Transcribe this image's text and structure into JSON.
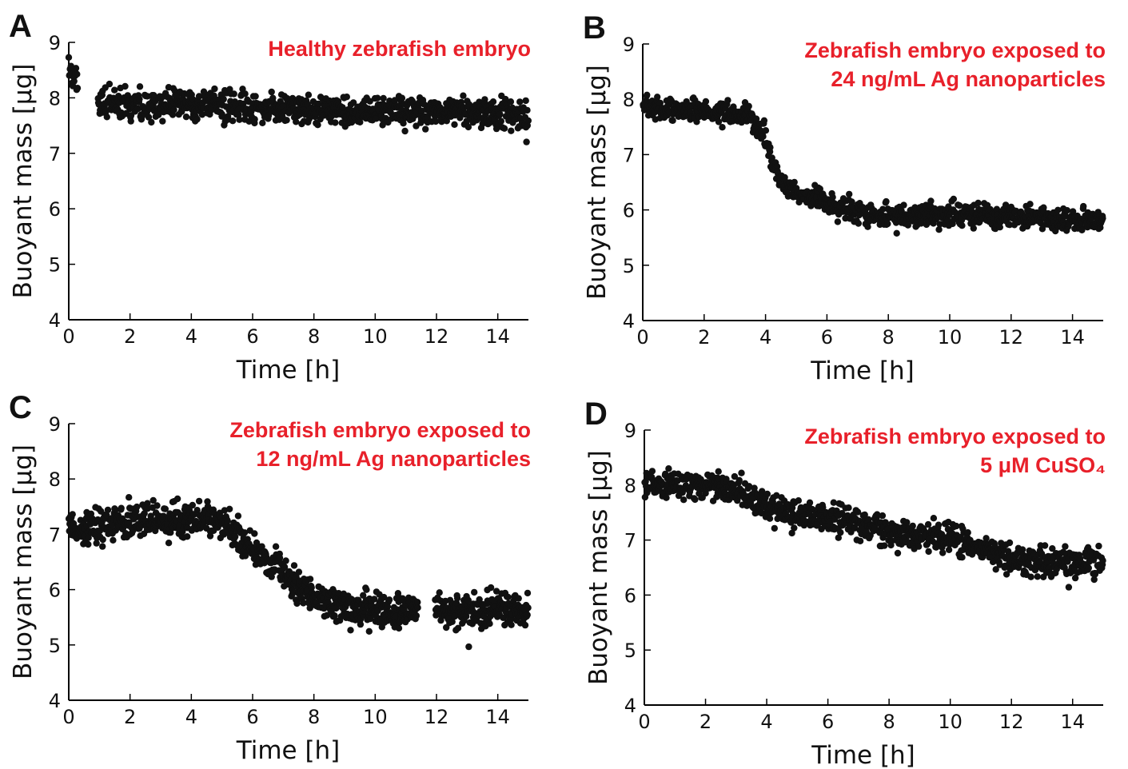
{
  "figure": {
    "annotation_color": "#e8202a",
    "marker_color": "#111111"
  },
  "chart_data": [
    {
      "panel": "A",
      "type": "scatter",
      "annotation": [
        "Healthy zebrafish embryo"
      ],
      "xlabel": "Time [h]",
      "ylabel": "Buoyant mass [μg]",
      "xlim": [
        0,
        15
      ],
      "ylim": [
        4,
        9
      ],
      "xticks": [
        0,
        2,
        4,
        6,
        8,
        10,
        12,
        14
      ],
      "yticks": [
        4,
        5,
        6,
        7,
        8,
        9
      ],
      "grid": false,
      "series": [
        {
          "trend": [
            [
              0.0,
              8.45
            ],
            [
              0.25,
              8.3
            ],
            [
              1.0,
              7.92
            ],
            [
              2.0,
              7.9
            ],
            [
              4.0,
              7.88
            ],
            [
              6.0,
              7.8
            ],
            [
              8.0,
              7.78
            ],
            [
              10.0,
              7.75
            ],
            [
              12.0,
              7.75
            ],
            [
              14.0,
              7.72
            ],
            [
              15.0,
              7.68
            ]
          ],
          "gaps": [
            [
              0.3,
              0.95
            ]
          ],
          "spread": 0.13,
          "n_points": 900
        }
      ]
    },
    {
      "panel": "B",
      "type": "scatter",
      "annotation": [
        "Zebrafish embryo exposed to",
        "24 ng/mL Ag nanoparticles"
      ],
      "xlabel": "Time [h]",
      "ylabel": "Buoyant mass [μg]",
      "xlim": [
        0,
        15
      ],
      "ylim": [
        4,
        9
      ],
      "xticks": [
        0,
        2,
        4,
        6,
        8,
        10,
        12,
        14
      ],
      "yticks": [
        4,
        5,
        6,
        7,
        8,
        9
      ],
      "grid": false,
      "series": [
        {
          "trend": [
            [
              0.0,
              7.85
            ],
            [
              2.0,
              7.78
            ],
            [
              3.5,
              7.7
            ],
            [
              3.9,
              7.4
            ],
            [
              4.2,
              6.9
            ],
            [
              4.6,
              6.45
            ],
            [
              5.0,
              6.3
            ],
            [
              6.0,
              6.1
            ],
            [
              7.0,
              5.95
            ],
            [
              8.0,
              5.9
            ],
            [
              10.0,
              5.92
            ],
            [
              12.0,
              5.88
            ],
            [
              14.0,
              5.8
            ],
            [
              15.0,
              5.82
            ]
          ],
          "gaps": [],
          "spread": 0.1,
          "n_points": 900
        }
      ]
    },
    {
      "panel": "C",
      "type": "scatter",
      "annotation": [
        "Zebrafish embryo exposed to",
        "12 ng/mL Ag nanoparticles"
      ],
      "xlabel": "Time [h]",
      "ylabel": "Buoyant mass [μg]",
      "xlim": [
        0,
        15
      ],
      "ylim": [
        4,
        9
      ],
      "xticks": [
        0,
        2,
        4,
        6,
        8,
        10,
        12,
        14
      ],
      "yticks": [
        4,
        5,
        6,
        7,
        8,
        9
      ],
      "grid": false,
      "series": [
        {
          "trend": [
            [
              0.0,
              7.1
            ],
            [
              2.0,
              7.2
            ],
            [
              4.0,
              7.25
            ],
            [
              5.0,
              7.25
            ],
            [
              5.5,
              7.0
            ],
            [
              6.0,
              6.75
            ],
            [
              6.5,
              6.55
            ],
            [
              7.0,
              6.35
            ],
            [
              7.5,
              6.05
            ],
            [
              8.0,
              5.85
            ],
            [
              9.0,
              5.7
            ],
            [
              10.0,
              5.65
            ],
            [
              11.3,
              5.6
            ],
            [
              12.0,
              5.6
            ],
            [
              13.0,
              5.62
            ],
            [
              15.0,
              5.62
            ]
          ],
          "gaps": [
            [
              11.4,
              11.95
            ]
          ],
          "spread": 0.15,
          "n_points": 1000
        }
      ]
    },
    {
      "panel": "D",
      "type": "scatter",
      "annotation": [
        "Zebrafish embryo exposed to",
        "5 μM CuSO₄"
      ],
      "xlabel": "Time [h]",
      "ylabel": "Buoyant mass [μg]",
      "xlim": [
        0,
        15
      ],
      "ylim": [
        4,
        9
      ],
      "xticks": [
        0,
        2,
        4,
        6,
        8,
        10,
        12,
        14
      ],
      "yticks": [
        4,
        5,
        6,
        7,
        8,
        9
      ],
      "grid": false,
      "series": [
        {
          "trend": [
            [
              0.0,
              8.1
            ],
            [
              1.0,
              7.95
            ],
            [
              2.0,
              7.98
            ],
            [
              3.0,
              7.95
            ],
            [
              4.0,
              7.6
            ],
            [
              5.0,
              7.45
            ],
            [
              6.0,
              7.4
            ],
            [
              7.0,
              7.25
            ],
            [
              8.0,
              7.15
            ],
            [
              9.0,
              7.1
            ],
            [
              10.0,
              7.05
            ],
            [
              11.0,
              6.85
            ],
            [
              12.0,
              6.65
            ],
            [
              13.0,
              6.6
            ],
            [
              14.0,
              6.6
            ],
            [
              15.0,
              6.62
            ]
          ],
          "gaps": [],
          "spread": 0.13,
          "n_points": 900
        }
      ]
    }
  ]
}
